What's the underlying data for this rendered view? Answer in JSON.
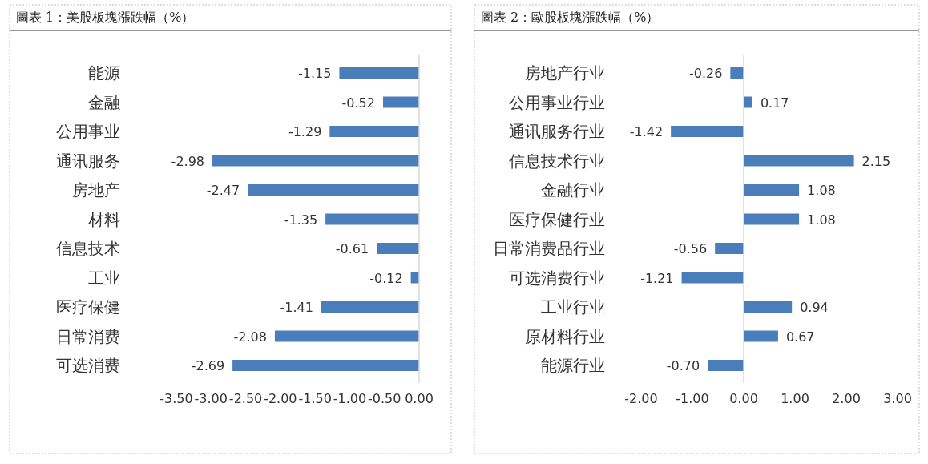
{
  "chart_data": [
    {
      "type": "bar",
      "orientation": "horizontal",
      "title": "圖表 1：美股板塊漲跌幅（%）",
      "categories": [
        "能源",
        "金融",
        "公用事业",
        "通讯服务",
        "房地产",
        "材料",
        "信息技术",
        "工业",
        "医疗保健",
        "日常消费",
        "可选消费"
      ],
      "series": [
        {
          "color": "#4a7ebb",
          "values": [
            -1.15,
            -0.52,
            -1.29,
            -2.98,
            -2.47,
            -1.35,
            -0.61,
            -0.12,
            -1.41,
            -2.08,
            -2.69
          ],
          "value_labels": [
            "-1.15",
            "-0.52",
            "-1.29",
            "-2.98",
            "-2.47",
            "-1.35",
            "-0.61",
            "-0.12",
            "-1.41",
            "-2.08",
            "-2.69"
          ]
        }
      ],
      "xlim": [
        -3.5,
        0
      ],
      "xticks": [
        {
          "value": -3.5,
          "label": "-3.50"
        },
        {
          "value": -3,
          "label": "-3.00"
        },
        {
          "value": -2.5,
          "label": "-2.50"
        },
        {
          "value": -2,
          "label": "-2.00"
        },
        {
          "value": -1.5,
          "label": "-1.50"
        },
        {
          "value": -1,
          "label": "-1.00"
        },
        {
          "value": -0.5,
          "label": "-0.50"
        },
        {
          "value": 0,
          "label": "0.00"
        }
      ]
    },
    {
      "type": "bar",
      "orientation": "horizontal",
      "title": "圖表 2：歐股板塊漲跌幅（%）",
      "categories": [
        "房地产行业",
        "公用事业行业",
        "通讯服务行业",
        "信息技术行业",
        "金融行业",
        "医疗保健行业",
        "日常消费品行业",
        "可选消费行业",
        "工业行业",
        "原材料行业",
        "能源行业"
      ],
      "series": [
        {
          "color": "#4a7ebb",
          "values": [
            -0.26,
            0.17,
            -1.42,
            2.15,
            1.08,
            1.08,
            -0.56,
            -1.21,
            0.94,
            0.67,
            -0.7
          ],
          "value_labels": [
            "-0.26",
            "0.17",
            "-1.42",
            "2.15",
            "1.08",
            "1.08",
            "-0.56",
            "-1.21",
            "0.94",
            "0.67",
            "-0.70"
          ]
        }
      ],
      "xlim": [
        -2,
        3
      ],
      "xticks": [
        {
          "value": -2,
          "label": "-2.00"
        },
        {
          "value": -1,
          "label": "-1.00"
        },
        {
          "value": 0,
          "label": "0.00"
        },
        {
          "value": 1,
          "label": "1.00"
        },
        {
          "value": 2,
          "label": "2.00"
        },
        {
          "value": 3,
          "label": "3.00"
        }
      ]
    }
  ]
}
